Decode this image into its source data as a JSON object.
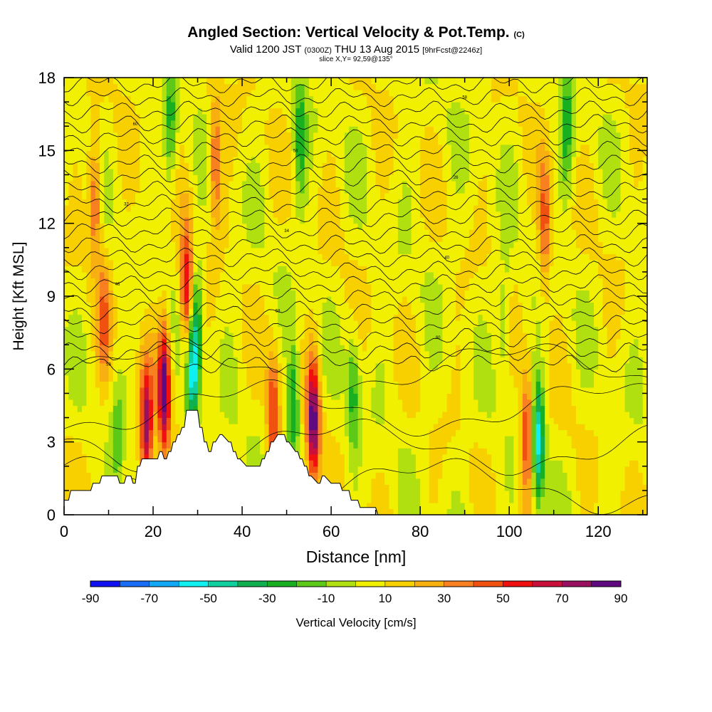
{
  "header": {
    "title": "Angled Section: Vertical Velocity & Pot.Temp.",
    "title_suffix": "(C)",
    "valid_prefix": "Valid 1200 JST",
    "valid_utc": "(0300Z)",
    "valid_date": "THU 13 Aug 2015",
    "forecast": "[9hrFcst@2246z]",
    "slice": "slice X,Y= 92,59@135°"
  },
  "chart_data": {
    "type": "heatmap",
    "title": "Angled Section: Vertical Velocity & Pot.Temp. (C)",
    "xlabel": "Distance [nm]",
    "ylabel": "Height [Kft MSL]",
    "xlim": [
      0,
      131
    ],
    "ylim": [
      0,
      18
    ],
    "x_ticks": [
      0,
      20,
      40,
      60,
      80,
      100,
      120
    ],
    "y_ticks": [
      0,
      3,
      6,
      9,
      12,
      15,
      18
    ],
    "colorbar": {
      "label": "Vertical Velocity [cm/s]",
      "tick_labels": [
        "-90",
        "-70",
        "-50",
        "-30",
        "-10",
        "10",
        "30",
        "50",
        "70",
        "90"
      ],
      "levels": [
        -90,
        -80,
        -70,
        -60,
        -50,
        -40,
        -30,
        -20,
        -10,
        0,
        10,
        20,
        30,
        40,
        50,
        60,
        70,
        80,
        90
      ],
      "colors": [
        "#1010f0",
        "#1a6ef5",
        "#12a8f5",
        "#10f0f0",
        "#10d0a0",
        "#10b050",
        "#18b020",
        "#5cc818",
        "#b0e010",
        "#f0f000",
        "#f8d000",
        "#f8b010",
        "#f88020",
        "#f05010",
        "#f01010",
        "#c8103a",
        "#9a1060",
        "#600a80"
      ]
    },
    "terrain_profile": {
      "x": [
        0,
        1,
        1.5,
        6,
        6.5,
        8,
        8.5,
        10,
        10.5,
        12,
        12.5,
        13.5,
        14,
        15,
        15.5,
        16,
        16.5,
        17,
        17.5,
        18,
        18.5,
        21,
        21.5,
        22,
        22.5,
        23,
        23.5,
        24,
        24.5,
        25,
        25.5,
        26,
        26.5,
        27,
        27.5,
        28,
        30,
        30.5,
        31,
        31.5,
        32,
        32.5,
        33,
        33.5,
        34,
        35,
        35.5,
        37,
        37.5,
        38,
        38.5,
        39,
        39.5,
        41,
        41.5,
        44,
        44.5,
        45,
        45.5,
        46,
        46.5,
        47,
        48,
        49,
        49.5,
        50,
        50.5,
        52,
        52.5,
        53,
        53.5,
        54,
        54.5,
        55,
        55.5,
        57,
        57.5,
        58,
        58.5,
        60,
        60.5,
        62,
        62.5,
        64,
        64.5,
        66,
        66.5,
        68,
        68.5,
        70,
        70.5,
        71,
        131
      ],
      "y": [
        0.6,
        0.6,
        1.0,
        1.0,
        1.3,
        1.3,
        1.6,
        1.6,
        1.6,
        1.6,
        1.3,
        1.3,
        1.6,
        1.6,
        1.3,
        1.3,
        2.0,
        2.0,
        2.3,
        2.3,
        2.3,
        2.3,
        2.6,
        2.6,
        2.3,
        2.3,
        2.6,
        2.6,
        3.0,
        3.0,
        3.3,
        3.3,
        3.6,
        3.6,
        4.3,
        4.3,
        4.3,
        3.6,
        3.6,
        3.0,
        3.0,
        2.6,
        2.6,
        3.0,
        3.0,
        3.3,
        3.3,
        3.0,
        3.0,
        2.6,
        2.6,
        2.3,
        2.3,
        2.0,
        2.0,
        2.0,
        2.3,
        2.3,
        2.6,
        2.6,
        3.0,
        3.0,
        3.3,
        3.3,
        3.3,
        3.0,
        3.0,
        2.6,
        2.6,
        2.3,
        2.3,
        2.0,
        2.0,
        1.6,
        1.6,
        1.3,
        1.3,
        1.6,
        1.6,
        1.3,
        1.3,
        1.3,
        1.0,
        1.0,
        0.6,
        0.6,
        0.3,
        0.3,
        0.3,
        0.3,
        0.0,
        0.0,
        0.0
      ]
    },
    "velocity_features": [
      {
        "x": 7,
        "y": 13,
        "value": 40
      },
      {
        "x": 9,
        "y": 8,
        "value": 30
      },
      {
        "x": 18.5,
        "y": 3.6,
        "value": 70
      },
      {
        "x": 22.5,
        "y": 5.2,
        "value": 80
      },
      {
        "x": 27.5,
        "y": 9.2,
        "value": 60
      },
      {
        "x": 28.8,
        "y": 5.8,
        "value": -60
      },
      {
        "x": 34,
        "y": 14.5,
        "value": 40
      },
      {
        "x": 30,
        "y": 8,
        "value": -30
      },
      {
        "x": 53,
        "y": 15.5,
        "value": -30
      },
      {
        "x": 56,
        "y": 3.9,
        "value": 80
      },
      {
        "x": 51.5,
        "y": 4.5,
        "value": -40
      },
      {
        "x": 47,
        "y": 4,
        "value": 50
      },
      {
        "x": 65,
        "y": 5,
        "value": -30
      },
      {
        "x": 104,
        "y": 3.2,
        "value": 50
      },
      {
        "x": 106.5,
        "y": 3,
        "value": -60
      },
      {
        "x": 108,
        "y": 12,
        "value": 40
      },
      {
        "x": 113,
        "y": 16,
        "value": -30
      },
      {
        "x": 24,
        "y": 16,
        "value": -30
      },
      {
        "x": 12,
        "y": 3,
        "value": -20
      },
      {
        "x": 99,
        "y": 8,
        "value": -20
      }
    ],
    "isentrope_labels": [
      "58",
      "50",
      "60",
      "62",
      "58",
      "54",
      "46",
      "44",
      "40",
      "36",
      "34",
      "30",
      "32",
      "28",
      "26",
      "22"
    ]
  }
}
